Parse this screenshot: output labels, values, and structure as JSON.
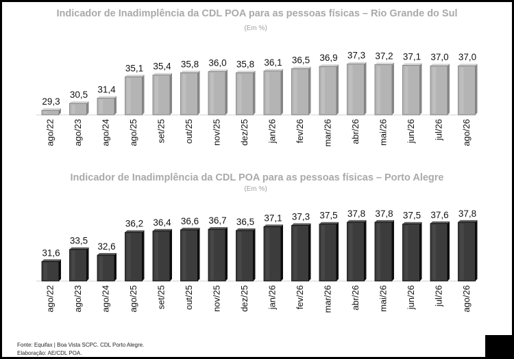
{
  "chart_data": [
    {
      "type": "bar",
      "title": "Indicador de Inadimplência da CDL POA para as pessoas físicas – Rio Grande do Sul",
      "subtitle": "(Em %)",
      "categories": [
        "ago/22",
        "ago/23",
        "ago/24",
        "ago/25",
        "set/25",
        "out/25",
        "nov/25",
        "dez/25",
        "jan/26",
        "fev/26",
        "mar/26",
        "abr/26",
        "mai/26",
        "jun/26",
        "jul/26",
        "ago/26"
      ],
      "values": [
        29.3,
        30.5,
        31.4,
        35.1,
        35.4,
        35.8,
        36.0,
        35.8,
        36.1,
        36.5,
        36.9,
        37.3,
        37.2,
        37.1,
        37.0,
        37.0
      ],
      "value_labels": [
        "29,3",
        "30,5",
        "31,4",
        "35,1",
        "35,4",
        "35,8",
        "36,0",
        "35,8",
        "36,1",
        "36,5",
        "36,9",
        "37,3",
        "37,2",
        "37,1",
        "37,0",
        "37,0"
      ],
      "ylim": [
        28.5,
        37.5
      ],
      "bar_color": "#b4b4b4",
      "grid": false
    },
    {
      "type": "bar",
      "title": "Indicador de Inadimplência da CDL POA para as pessoas físicas – Porto Alegre",
      "subtitle": "(Em %)",
      "categories": [
        "ago/22",
        "ago/23",
        "ago/24",
        "ago/25",
        "set/25",
        "out/25",
        "nov/25",
        "dez/25",
        "jan/26",
        "fev/26",
        "mar/26",
        "abr/26",
        "mai/26",
        "jun/26",
        "jul/26",
        "ago/26"
      ],
      "values": [
        31.6,
        33.5,
        32.6,
        36.2,
        36.4,
        36.6,
        36.7,
        36.5,
        37.1,
        37.3,
        37.5,
        37.8,
        37.8,
        37.5,
        37.6,
        37.8
      ],
      "value_labels": [
        "31,6",
        "33,5",
        "32,6",
        "36,2",
        "36,4",
        "36,6",
        "36,7",
        "36,5",
        "37,1",
        "37,3",
        "37,5",
        "37,8",
        "37,8",
        "37,5",
        "37,6",
        "37,8"
      ],
      "ylim": [
        28.5,
        37.9
      ],
      "bar_color": "#3c3c3c",
      "grid": false
    }
  ],
  "footer": {
    "source": "Fonte: Equifax | Boa Vista SCPC. CDL Porto Alegre.",
    "elaboration": "Elaboração: AE/CDL POA."
  }
}
